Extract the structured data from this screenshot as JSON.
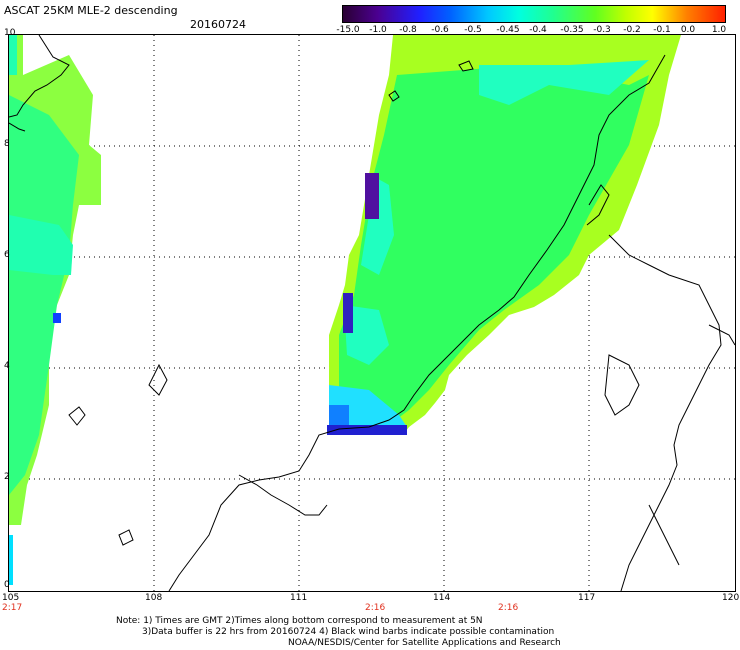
{
  "header": {
    "title": "ASCAT 25KM MLE-2 descending",
    "date": "20160724"
  },
  "colorbar": {
    "labels": [
      "-15.0",
      "-1.0",
      "-0.8",
      "-0.6",
      "-0.5",
      "-0.45",
      "-0.4",
      "-0.35",
      "-0.3",
      "-0.2",
      "-0.1",
      "0.0",
      "1.0"
    ]
  },
  "axes": {
    "x_ticks": [
      "105",
      "108",
      "111",
      "114",
      "117",
      "120"
    ],
    "y_ticks": [
      "0",
      "2",
      "4",
      "6",
      "8",
      "10"
    ]
  },
  "times": [
    "2:17",
    "2:16",
    "2:16"
  ],
  "notes": {
    "line1": "Note: 1) Times are GMT 2)Times along bottom correspond to measurement at 5N",
    "line2": "3)Data buffer is 22 hrs from 20160724 4) Black wind barbs indicate possible contamination",
    "line3": "NOAA/NESDIS/Center for Satellite Applications and Research"
  },
  "map": {
    "lon_range": [
      105,
      120
    ],
    "lat_range": [
      0,
      10
    ],
    "grid": true,
    "colors": {
      "land_outline": "#000000",
      "low": "#1010c8",
      "mid": "#20ff90",
      "high": "#a8ff20"
    }
  }
}
